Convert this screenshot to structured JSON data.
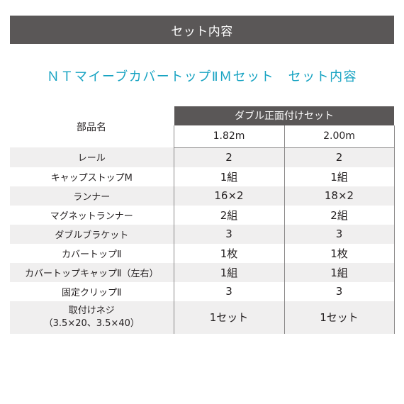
{
  "banner_title": "セット内容",
  "subtitle": "ＮＴマイーブカバートップⅡＭセット　セット内容",
  "table": {
    "name_header": "部品名",
    "group_header": "ダブル正面付けセット",
    "sizes": [
      "1.82m",
      "2.00m"
    ],
    "rows": [
      {
        "name": "レール",
        "v1": "2",
        "v2": "2"
      },
      {
        "name": "キャップストップM",
        "v1": "1組",
        "v2": "1組"
      },
      {
        "name": "ランナー",
        "v1": "16×2",
        "v2": "18×2"
      },
      {
        "name": "マグネットランナー",
        "v1": "2組",
        "v2": "2組"
      },
      {
        "name": "ダブルブラケット",
        "v1": "3",
        "v2": "3"
      },
      {
        "name": "カバートップⅡ",
        "v1": "1枚",
        "v2": "1枚"
      },
      {
        "name": "カバートップキャップⅡ（左右）",
        "v1": "1組",
        "v2": "1組"
      },
      {
        "name": "固定クリップⅡ",
        "v1": "3",
        "v2": "3"
      },
      {
        "name": "取付けネジ",
        "name2": "（3.5×20、3.5×40）",
        "v1": "1セット",
        "v2": "1セット"
      }
    ]
  }
}
